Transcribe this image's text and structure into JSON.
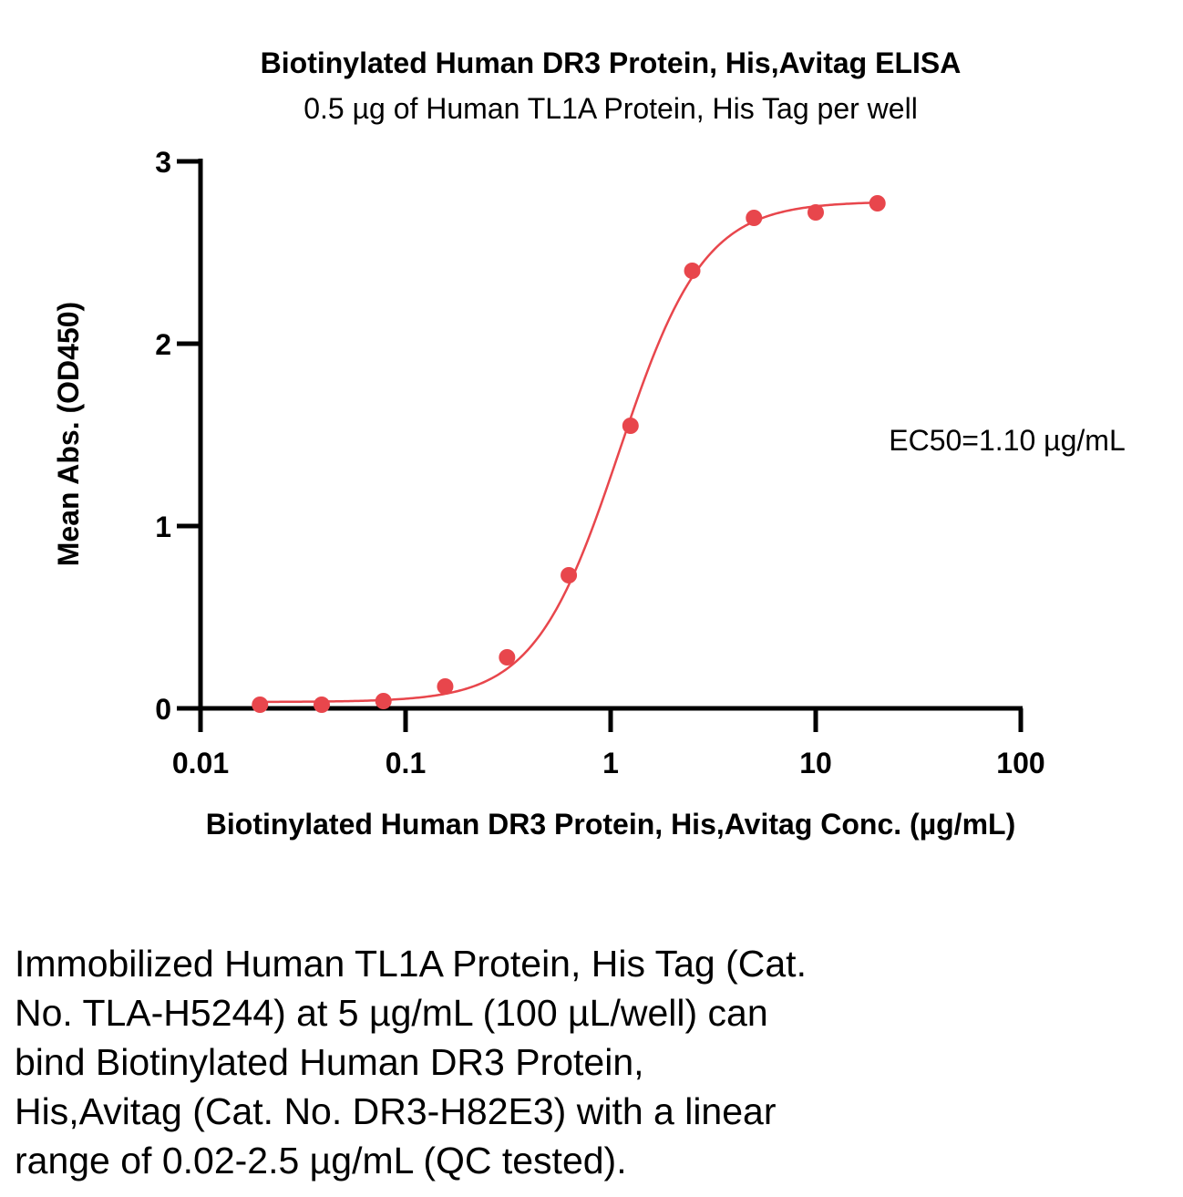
{
  "chart_data": {
    "type": "scatter",
    "title": "Biotinylated Human DR3 Protein, His,Avitag ELISA",
    "subtitle": "0.5 µg of Human TL1A Protein, His Tag per well",
    "xlabel": "Biotinylated Human DR3 Protein, His,Avitag Conc. (µg/mL)",
    "ylabel": "Mean Abs. (OD450)",
    "x_scale": "log",
    "xlim": [
      0.01,
      100
    ],
    "ylim": [
      0,
      3
    ],
    "x_ticks": [
      0.01,
      0.1,
      1,
      10,
      100
    ],
    "x_tick_labels": [
      "0.01",
      "0.1",
      "1",
      "10",
      "100"
    ],
    "y_ticks": [
      0,
      1,
      2,
      3
    ],
    "y_tick_labels": [
      "0",
      "1",
      "2",
      "3"
    ],
    "grid": false,
    "legend": "none",
    "series": [
      {
        "color": "#e8464c",
        "x": [
          0.0195,
          0.039,
          0.078,
          0.156,
          0.3125,
          0.625,
          1.25,
          2.5,
          5,
          10,
          20
        ],
        "y": [
          0.02,
          0.02,
          0.04,
          0.12,
          0.28,
          0.73,
          1.55,
          2.4,
          2.69,
          2.72,
          2.77
        ]
      }
    ],
    "fit": {
      "model": "4PL",
      "bottom": 0.035,
      "top": 2.78,
      "ec50": 1.1,
      "hill": 2.1,
      "color": "#e8464c"
    },
    "annotations": [
      "EC50=1.10 µg/mL"
    ]
  },
  "caption": {
    "lines": [
      "Immobilized Human TL1A Protein, His Tag (Cat.",
      "No. TLA-H5244) at 5 µg/mL (100 µL/well) can",
      "bind Biotinylated Human DR3 Protein,",
      "His,Avitag (Cat. No. DR3-H82E3) with a linear",
      "range of 0.02-2.5 µg/mL (QC tested)."
    ]
  }
}
